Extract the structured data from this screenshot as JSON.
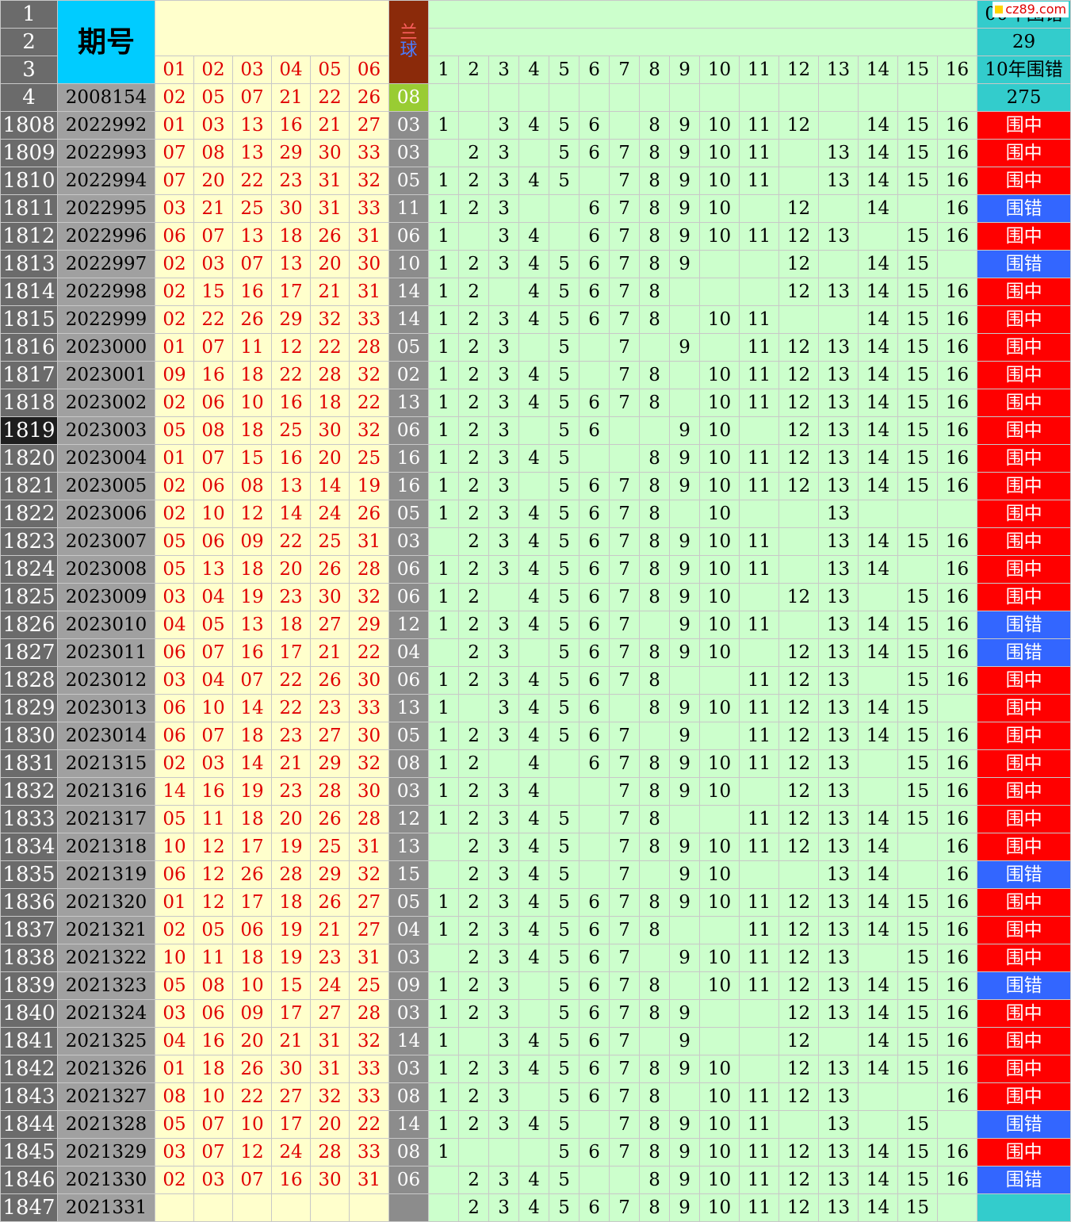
{
  "header": {
    "row_numbers": [
      "1",
      "2",
      "3",
      "4"
    ],
    "title": "期号",
    "red_labels": [
      "01",
      "02",
      "03",
      "04",
      "05",
      "06"
    ],
    "blue_label_line1": "兰",
    "blue_label_line2": "球",
    "grid_labels": [
      "1",
      "2",
      "3",
      "4",
      "5",
      "6",
      "7",
      "8",
      "9",
      "10",
      "11",
      "12",
      "13",
      "14",
      "15",
      "16"
    ],
    "stat1_label": "00年围错",
    "stat1_value": "29",
    "stat2_label": "10年围错",
    "stat2_value": "275",
    "logo_text": "cz89.com",
    "ref_issue": "2008154",
    "ref_reds": [
      "02",
      "05",
      "07",
      "21",
      "22",
      "26"
    ],
    "ref_blue": "08"
  },
  "colors": {
    "hit": "#ff0000",
    "miss": "#3366ff",
    "grid": "#ccffcc",
    "red_text": "#e00000"
  },
  "rows": [
    {
      "n": "1808",
      "issue": "2022992",
      "reds": [
        "01",
        "03",
        "13",
        "16",
        "21",
        "27"
      ],
      "blue": "03",
      "grid": [
        "1",
        "",
        "3",
        "4",
        "5",
        "6",
        "",
        "8",
        "9",
        "10",
        "11",
        "12",
        "",
        "14",
        "15",
        "16"
      ],
      "result": "围中"
    },
    {
      "n": "1809",
      "issue": "2022993",
      "reds": [
        "07",
        "08",
        "13",
        "29",
        "30",
        "33"
      ],
      "blue": "03",
      "grid": [
        "",
        "2",
        "3",
        "",
        "5",
        "6",
        "7",
        "8",
        "9",
        "10",
        "11",
        "",
        "13",
        "14",
        "15",
        "16"
      ],
      "result": "围中"
    },
    {
      "n": "1810",
      "issue": "2022994",
      "reds": [
        "07",
        "20",
        "22",
        "23",
        "31",
        "32"
      ],
      "blue": "05",
      "grid": [
        "1",
        "2",
        "3",
        "4",
        "5",
        "",
        "7",
        "8",
        "9",
        "10",
        "11",
        "",
        "13",
        "14",
        "15",
        "16"
      ],
      "result": "围中"
    },
    {
      "n": "1811",
      "issue": "2022995",
      "reds": [
        "03",
        "21",
        "25",
        "30",
        "31",
        "33"
      ],
      "blue": "11",
      "grid": [
        "1",
        "2",
        "3",
        "",
        "",
        "6",
        "7",
        "8",
        "9",
        "10",
        "",
        "12",
        "",
        "14",
        "",
        "16"
      ],
      "result": "围错"
    },
    {
      "n": "1812",
      "issue": "2022996",
      "reds": [
        "06",
        "07",
        "13",
        "18",
        "26",
        "31"
      ],
      "blue": "06",
      "grid": [
        "1",
        "",
        "3",
        "4",
        "",
        "6",
        "7",
        "8",
        "9",
        "10",
        "11",
        "12",
        "13",
        "",
        "15",
        "16"
      ],
      "result": "围中"
    },
    {
      "n": "1813",
      "issue": "2022997",
      "reds": [
        "02",
        "03",
        "07",
        "13",
        "20",
        "30"
      ],
      "blue": "10",
      "grid": [
        "1",
        "2",
        "3",
        "4",
        "5",
        "6",
        "7",
        "8",
        "9",
        "",
        "",
        "12",
        "",
        "14",
        "15",
        ""
      ],
      "result": "围错"
    },
    {
      "n": "1814",
      "issue": "2022998",
      "reds": [
        "02",
        "15",
        "16",
        "17",
        "21",
        "31"
      ],
      "blue": "14",
      "grid": [
        "1",
        "2",
        "",
        "4",
        "5",
        "6",
        "7",
        "8",
        "",
        "",
        "",
        "12",
        "13",
        "14",
        "15",
        "16"
      ],
      "result": "围中"
    },
    {
      "n": "1815",
      "issue": "2022999",
      "reds": [
        "02",
        "22",
        "26",
        "29",
        "32",
        "33"
      ],
      "blue": "14",
      "grid": [
        "1",
        "2",
        "3",
        "4",
        "5",
        "6",
        "7",
        "8",
        "",
        "10",
        "11",
        "",
        "",
        "14",
        "15",
        "16"
      ],
      "result": "围中"
    },
    {
      "n": "1816",
      "issue": "2023000",
      "reds": [
        "01",
        "07",
        "11",
        "12",
        "22",
        "28"
      ],
      "blue": "05",
      "grid": [
        "1",
        "2",
        "3",
        "",
        "5",
        "",
        "7",
        "",
        "9",
        "",
        "11",
        "12",
        "13",
        "14",
        "15",
        "16"
      ],
      "result": "围中"
    },
    {
      "n": "1817",
      "issue": "2023001",
      "reds": [
        "09",
        "16",
        "18",
        "22",
        "28",
        "32"
      ],
      "blue": "02",
      "grid": [
        "1",
        "2",
        "3",
        "4",
        "5",
        "",
        "7",
        "8",
        "",
        "10",
        "11",
        "12",
        "13",
        "14",
        "15",
        "16"
      ],
      "result": "围中"
    },
    {
      "n": "1818",
      "issue": "2023002",
      "reds": [
        "02",
        "06",
        "10",
        "16",
        "18",
        "22"
      ],
      "blue": "13",
      "grid": [
        "1",
        "2",
        "3",
        "4",
        "5",
        "6",
        "7",
        "8",
        "",
        "10",
        "11",
        "12",
        "13",
        "14",
        "15",
        "16"
      ],
      "result": "围中"
    },
    {
      "n": "1819",
      "issue": "2023003",
      "reds": [
        "05",
        "08",
        "18",
        "25",
        "30",
        "32"
      ],
      "blue": "06",
      "grid": [
        "1",
        "2",
        "3",
        "",
        "5",
        "6",
        "",
        "",
        "9",
        "10",
        "",
        "12",
        "13",
        "14",
        "15",
        "16"
      ],
      "result": "围中",
      "selected": true
    },
    {
      "n": "1820",
      "issue": "2023004",
      "reds": [
        "01",
        "07",
        "15",
        "16",
        "20",
        "25"
      ],
      "blue": "16",
      "grid": [
        "1",
        "2",
        "3",
        "4",
        "5",
        "",
        "",
        "8",
        "9",
        "10",
        "11",
        "12",
        "13",
        "14",
        "15",
        "16"
      ],
      "result": "围中"
    },
    {
      "n": "1821",
      "issue": "2023005",
      "reds": [
        "02",
        "06",
        "08",
        "13",
        "14",
        "19"
      ],
      "blue": "16",
      "grid": [
        "1",
        "2",
        "3",
        "",
        "5",
        "6",
        "7",
        "8",
        "9",
        "10",
        "11",
        "12",
        "13",
        "14",
        "15",
        "16"
      ],
      "result": "围中"
    },
    {
      "n": "1822",
      "issue": "2023006",
      "reds": [
        "02",
        "10",
        "12",
        "14",
        "24",
        "26"
      ],
      "blue": "05",
      "grid": [
        "1",
        "2",
        "3",
        "4",
        "5",
        "6",
        "7",
        "8",
        "",
        "10",
        "",
        "",
        "13",
        "",
        "",
        ""
      ],
      "result": "围中"
    },
    {
      "n": "1823",
      "issue": "2023007",
      "reds": [
        "05",
        "06",
        "09",
        "22",
        "25",
        "31"
      ],
      "blue": "03",
      "grid": [
        "",
        "2",
        "3",
        "4",
        "5",
        "6",
        "7",
        "8",
        "9",
        "10",
        "11",
        "",
        "13",
        "14",
        "15",
        "16"
      ],
      "result": "围中"
    },
    {
      "n": "1824",
      "issue": "2023008",
      "reds": [
        "05",
        "13",
        "18",
        "20",
        "26",
        "28"
      ],
      "blue": "06",
      "grid": [
        "1",
        "2",
        "3",
        "4",
        "5",
        "6",
        "7",
        "8",
        "9",
        "10",
        "11",
        "",
        "13",
        "14",
        "",
        "16"
      ],
      "result": "围中"
    },
    {
      "n": "1825",
      "issue": "2023009",
      "reds": [
        "03",
        "04",
        "19",
        "23",
        "30",
        "32"
      ],
      "blue": "06",
      "grid": [
        "1",
        "2",
        "",
        "4",
        "5",
        "6",
        "7",
        "8",
        "9",
        "10",
        "",
        "12",
        "13",
        "",
        "15",
        "16"
      ],
      "result": "围中"
    },
    {
      "n": "1826",
      "issue": "2023010",
      "reds": [
        "04",
        "05",
        "13",
        "18",
        "27",
        "29"
      ],
      "blue": "12",
      "grid": [
        "1",
        "2",
        "3",
        "4",
        "5",
        "6",
        "7",
        "",
        "9",
        "10",
        "11",
        "",
        "13",
        "14",
        "15",
        "16"
      ],
      "result": "围错"
    },
    {
      "n": "1827",
      "issue": "2023011",
      "reds": [
        "06",
        "07",
        "16",
        "17",
        "21",
        "22"
      ],
      "blue": "04",
      "grid": [
        "",
        "2",
        "3",
        "",
        "5",
        "6",
        "7",
        "8",
        "9",
        "10",
        "",
        "12",
        "13",
        "14",
        "15",
        "16"
      ],
      "result": "围错"
    },
    {
      "n": "1828",
      "issue": "2023012",
      "reds": [
        "03",
        "04",
        "07",
        "22",
        "26",
        "30"
      ],
      "blue": "06",
      "grid": [
        "1",
        "2",
        "3",
        "4",
        "5",
        "6",
        "7",
        "8",
        "",
        "",
        "11",
        "12",
        "13",
        "",
        "15",
        "16"
      ],
      "result": "围中"
    },
    {
      "n": "1829",
      "issue": "2023013",
      "reds": [
        "06",
        "10",
        "14",
        "22",
        "23",
        "33"
      ],
      "blue": "13",
      "grid": [
        "1",
        "",
        "3",
        "4",
        "5",
        "6",
        "",
        "8",
        "9",
        "10",
        "11",
        "12",
        "13",
        "14",
        "15",
        ""
      ],
      "result": "围中"
    },
    {
      "n": "1830",
      "issue": "2023014",
      "reds": [
        "06",
        "07",
        "18",
        "23",
        "27",
        "30"
      ],
      "blue": "05",
      "grid": [
        "1",
        "2",
        "3",
        "4",
        "5",
        "6",
        "7",
        "",
        "9",
        "",
        "11",
        "12",
        "13",
        "14",
        "15",
        "16"
      ],
      "result": "围中"
    },
    {
      "n": "1831",
      "issue": "2021315",
      "reds": [
        "02",
        "03",
        "14",
        "21",
        "29",
        "32"
      ],
      "blue": "08",
      "grid": [
        "1",
        "2",
        "",
        "4",
        "",
        "6",
        "7",
        "8",
        "9",
        "10",
        "11",
        "12",
        "13",
        "",
        "15",
        "16"
      ],
      "result": "围中"
    },
    {
      "n": "1832",
      "issue": "2021316",
      "reds": [
        "14",
        "16",
        "19",
        "23",
        "28",
        "30"
      ],
      "blue": "03",
      "grid": [
        "1",
        "2",
        "3",
        "4",
        "",
        "",
        "7",
        "8",
        "9",
        "10",
        "",
        "12",
        "13",
        "",
        "15",
        "16"
      ],
      "result": "围中"
    },
    {
      "n": "1833",
      "issue": "2021317",
      "reds": [
        "05",
        "11",
        "18",
        "20",
        "26",
        "28"
      ],
      "blue": "12",
      "grid": [
        "1",
        "2",
        "3",
        "4",
        "5",
        "",
        "7",
        "8",
        "",
        "",
        "11",
        "12",
        "13",
        "14",
        "15",
        "16"
      ],
      "result": "围中"
    },
    {
      "n": "1834",
      "issue": "2021318",
      "reds": [
        "10",
        "12",
        "17",
        "19",
        "25",
        "31"
      ],
      "blue": "13",
      "grid": [
        "",
        "2",
        "3",
        "4",
        "5",
        "",
        "7",
        "8",
        "9",
        "10",
        "11",
        "12",
        "13",
        "14",
        "",
        "16"
      ],
      "result": "围中"
    },
    {
      "n": "1835",
      "issue": "2021319",
      "reds": [
        "06",
        "12",
        "26",
        "28",
        "29",
        "32"
      ],
      "blue": "15",
      "grid": [
        "",
        "2",
        "3",
        "4",
        "5",
        "",
        "7",
        "",
        "9",
        "10",
        "",
        "",
        "13",
        "14",
        "",
        "16"
      ],
      "result": "围错"
    },
    {
      "n": "1836",
      "issue": "2021320",
      "reds": [
        "01",
        "12",
        "17",
        "18",
        "26",
        "27"
      ],
      "blue": "05",
      "grid": [
        "1",
        "2",
        "3",
        "4",
        "5",
        "6",
        "7",
        "8",
        "9",
        "10",
        "11",
        "12",
        "13",
        "14",
        "15",
        "16"
      ],
      "result": "围中"
    },
    {
      "n": "1837",
      "issue": "2021321",
      "reds": [
        "02",
        "05",
        "06",
        "19",
        "21",
        "27"
      ],
      "blue": "04",
      "grid": [
        "1",
        "2",
        "3",
        "4",
        "5",
        "6",
        "7",
        "8",
        "",
        "",
        "11",
        "12",
        "13",
        "14",
        "15",
        "16"
      ],
      "result": "围中"
    },
    {
      "n": "1838",
      "issue": "2021322",
      "reds": [
        "10",
        "11",
        "18",
        "19",
        "23",
        "31"
      ],
      "blue": "03",
      "grid": [
        "",
        "2",
        "3",
        "4",
        "5",
        "6",
        "7",
        "",
        "9",
        "10",
        "11",
        "12",
        "13",
        "",
        "15",
        "16"
      ],
      "result": "围中"
    },
    {
      "n": "1839",
      "issue": "2021323",
      "reds": [
        "05",
        "08",
        "10",
        "15",
        "24",
        "25"
      ],
      "blue": "09",
      "grid": [
        "1",
        "2",
        "3",
        "",
        "5",
        "6",
        "7",
        "8",
        "",
        "10",
        "11",
        "12",
        "13",
        "14",
        "15",
        "16"
      ],
      "result": "围错"
    },
    {
      "n": "1840",
      "issue": "2021324",
      "reds": [
        "03",
        "06",
        "09",
        "17",
        "27",
        "28"
      ],
      "blue": "03",
      "grid": [
        "1",
        "2",
        "3",
        "",
        "5",
        "6",
        "7",
        "8",
        "9",
        "",
        "",
        "12",
        "13",
        "14",
        "15",
        "16"
      ],
      "result": "围中"
    },
    {
      "n": "1841",
      "issue": "2021325",
      "reds": [
        "04",
        "16",
        "20",
        "21",
        "31",
        "32"
      ],
      "blue": "14",
      "grid": [
        "1",
        "",
        "3",
        "4",
        "5",
        "6",
        "7",
        "",
        "9",
        "",
        "",
        "12",
        "",
        "14",
        "15",
        "16"
      ],
      "result": "围中"
    },
    {
      "n": "1842",
      "issue": "2021326",
      "reds": [
        "01",
        "18",
        "26",
        "30",
        "31",
        "33"
      ],
      "blue": "03",
      "grid": [
        "1",
        "2",
        "3",
        "4",
        "5",
        "6",
        "7",
        "8",
        "9",
        "10",
        "",
        "12",
        "13",
        "14",
        "15",
        "16"
      ],
      "result": "围中"
    },
    {
      "n": "1843",
      "issue": "2021327",
      "reds": [
        "08",
        "10",
        "22",
        "27",
        "32",
        "33"
      ],
      "blue": "08",
      "grid": [
        "1",
        "2",
        "3",
        "",
        "5",
        "6",
        "7",
        "8",
        "",
        "10",
        "11",
        "12",
        "13",
        "",
        "",
        "16"
      ],
      "result": "围中"
    },
    {
      "n": "1844",
      "issue": "2021328",
      "reds": [
        "05",
        "07",
        "10",
        "17",
        "20",
        "22"
      ],
      "blue": "14",
      "grid": [
        "1",
        "2",
        "3",
        "4",
        "5",
        "",
        "7",
        "8",
        "9",
        "10",
        "11",
        "",
        "13",
        "",
        "15",
        ""
      ],
      "result": "围错"
    },
    {
      "n": "1845",
      "issue": "2021329",
      "reds": [
        "03",
        "07",
        "12",
        "24",
        "28",
        "33"
      ],
      "blue": "08",
      "grid": [
        "1",
        "",
        "",
        "",
        "5",
        "6",
        "7",
        "8",
        "9",
        "10",
        "11",
        "12",
        "13",
        "14",
        "15",
        "16"
      ],
      "result": "围中"
    },
    {
      "n": "1846",
      "issue": "2021330",
      "reds": [
        "02",
        "03",
        "07",
        "16",
        "30",
        "31"
      ],
      "blue": "06",
      "grid": [
        "",
        "2",
        "3",
        "4",
        "5",
        "",
        "",
        "8",
        "9",
        "10",
        "11",
        "12",
        "13",
        "14",
        "15",
        "16"
      ],
      "result": "围错"
    },
    {
      "n": "1847",
      "issue": "2021331",
      "reds": [
        "",
        "",
        "",
        "",
        "",
        ""
      ],
      "blue": "",
      "grid": [
        "",
        "2",
        "3",
        "4",
        "5",
        "6",
        "7",
        "8",
        "9",
        "10",
        "11",
        "12",
        "13",
        "14",
        "15",
        ""
      ],
      "result": ""
    }
  ]
}
